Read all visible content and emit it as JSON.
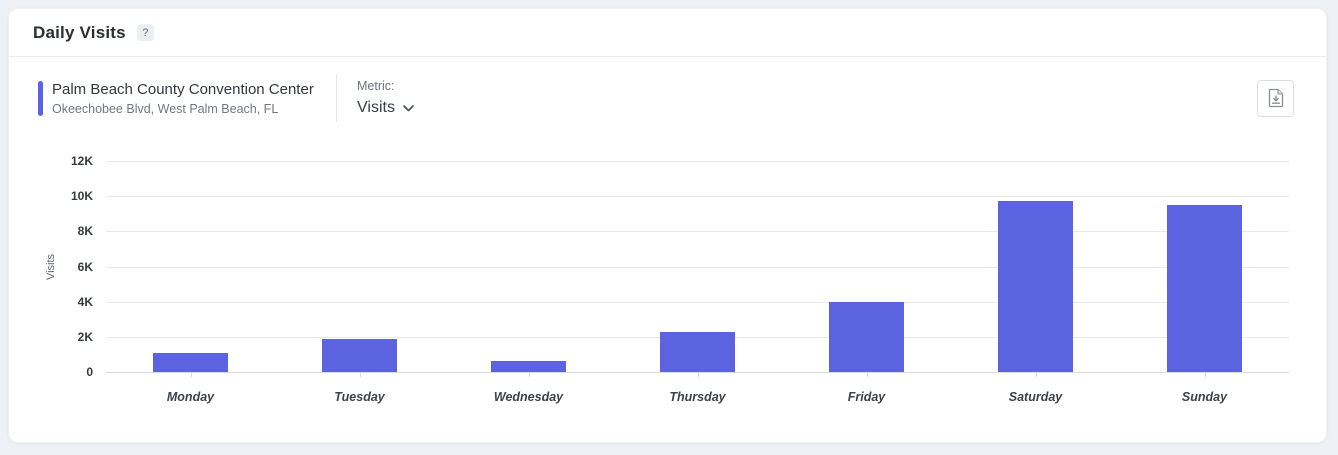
{
  "header": {
    "title": "Daily Visits",
    "help_badge": "?"
  },
  "venue": {
    "name": "Palm Beach County Convention Center",
    "address": "Okeechobee Blvd, West Palm Beach, FL"
  },
  "metric": {
    "label": "Metric:",
    "selected": "Visits"
  },
  "toolbar": {
    "export_icon": "download-report-icon"
  },
  "colors": {
    "accent": "#5b63e0",
    "bar": "#5b63e0",
    "page_background": "#edf0f5",
    "gridline": "#e7e9ed"
  },
  "chart_data": {
    "type": "bar",
    "title": "Daily Visits",
    "categories": [
      "Monday",
      "Tuesday",
      "Wednesday",
      "Thursday",
      "Friday",
      "Saturday",
      "Sunday"
    ],
    "values": [
      1100,
      1850,
      600,
      2300,
      4000,
      9700,
      9500
    ],
    "series_name": "Visits",
    "xlabel": "",
    "ylabel": "Visits",
    "ylim": [
      0,
      12000
    ],
    "ytick_step": 2000,
    "ytick_labels": [
      "0",
      "2K",
      "4K",
      "6K",
      "8K",
      "10K",
      "12K"
    ],
    "legend": "none",
    "grid": "horizontal"
  }
}
